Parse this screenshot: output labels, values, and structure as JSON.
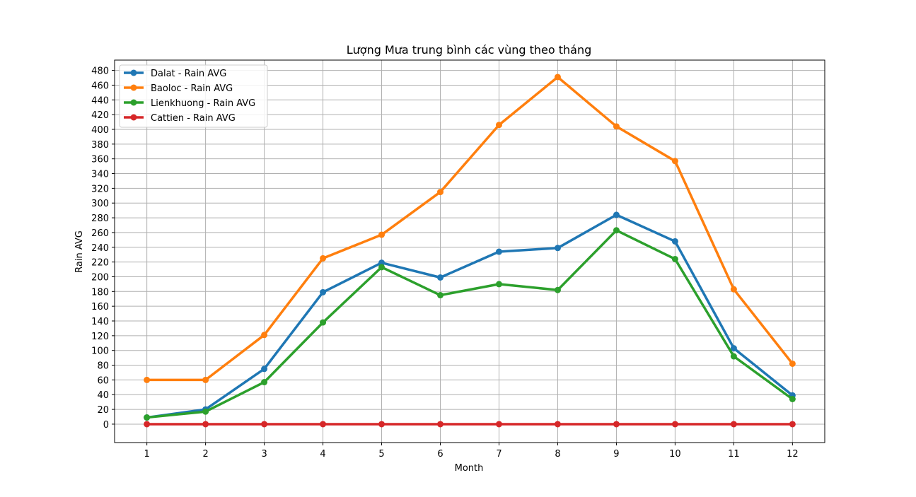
{
  "chart_data": {
    "type": "line",
    "title": "Lượng Mưa trung bình các vùng theo tháng",
    "xlabel": "Month",
    "ylabel": "Rain AVG",
    "x": [
      1,
      2,
      3,
      4,
      5,
      6,
      7,
      8,
      9,
      10,
      11,
      12
    ],
    "x_ticks": [
      "1",
      "2",
      "3",
      "4",
      "5",
      "6",
      "7",
      "8",
      "9",
      "10",
      "11",
      "12"
    ],
    "y_ticks": [
      "0",
      "20",
      "40",
      "60",
      "80",
      "100",
      "120",
      "140",
      "160",
      "180",
      "200",
      "220",
      "240",
      "260",
      "280",
      "300",
      "320",
      "340",
      "360",
      "380",
      "400",
      "420",
      "440",
      "460",
      "480"
    ],
    "xlim": [
      0.45,
      12.55
    ],
    "ylim": [
      -25,
      494
    ],
    "grid": true,
    "legend_position": "top-left",
    "series": [
      {
        "name": "Dalat - Rain AVG",
        "color": "#1f77b4",
        "values": [
          9,
          20,
          75,
          179,
          219,
          199,
          234,
          239,
          284,
          248,
          103,
          39
        ]
      },
      {
        "name": "Baoloc - Rain AVG",
        "color": "#ff7f0e",
        "values": [
          60,
          60,
          121,
          225,
          257,
          315,
          406,
          471,
          404,
          357,
          183,
          82
        ]
      },
      {
        "name": "Lienkhuong - Rain AVG",
        "color": "#2ca02c",
        "values": [
          9,
          17,
          57,
          138,
          213,
          175,
          190,
          182,
          263,
          224,
          92,
          34
        ]
      },
      {
        "name": "Cattien - Rain AVG",
        "color": "#d62728",
        "values": [
          0,
          0,
          0,
          0,
          0,
          0,
          0,
          0,
          0,
          0,
          0,
          0
        ]
      }
    ]
  }
}
